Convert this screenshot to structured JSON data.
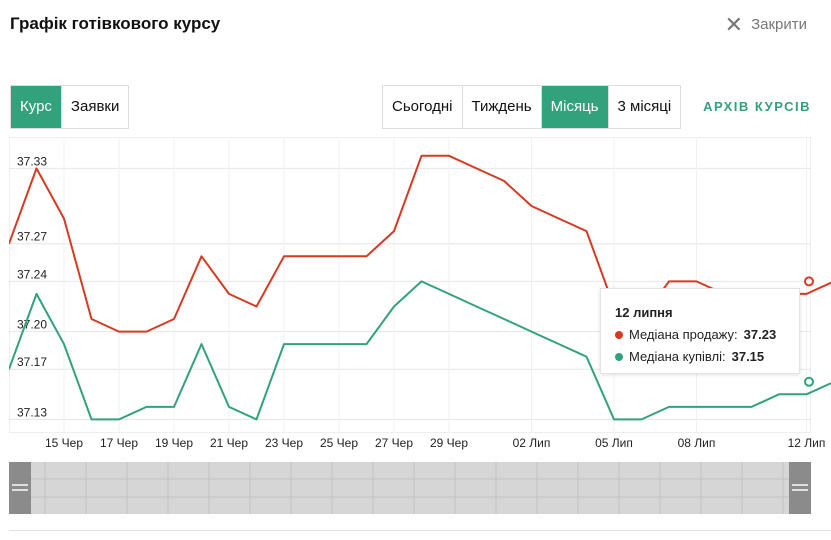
{
  "header": {
    "title": "Графік готівкового курсу",
    "close_label": "Закрити"
  },
  "type_tabs": [
    {
      "label": "Курс",
      "active": true
    },
    {
      "label": "Заявки",
      "active": false
    }
  ],
  "period_tabs": [
    {
      "label": "Сьогодні",
      "active": false
    },
    {
      "label": "Тиждень",
      "active": false
    },
    {
      "label": "Місяць",
      "active": true
    },
    {
      "label": "3 місяці",
      "active": false
    }
  ],
  "archive_link": "АРХІВ КУРСІВ",
  "tooltip": {
    "date": "12 липня",
    "sell_label": "Медіана продажу:",
    "sell_value": "37.23",
    "buy_label": "Медіана купівлі:",
    "buy_value": "37.15"
  },
  "colors": {
    "sell": "#d63a23",
    "buy": "#31a27c",
    "accent": "#31a27c",
    "grid": "#e6e6e6"
  },
  "chart_data": {
    "type": "line",
    "x_tick_labels": [
      "15 Чер",
      "17 Чер",
      "19 Чер",
      "21 Чер",
      "23 Чер",
      "25 Чер",
      "27 Чер",
      "29 Чер",
      "02 Лип",
      "05 Лип",
      "08 Лип",
      "12 Лип"
    ],
    "y_tick_labels": [
      "37.33",
      "37.27",
      "37.24",
      "37.20",
      "37.17",
      "37.13"
    ],
    "x": [
      "13 Чер",
      "14 Чер",
      "15 Чер",
      "16 Чер",
      "17 Чер",
      "18 Чер",
      "19 Чер",
      "20 Чер",
      "21 Чер",
      "22 Чер",
      "23 Чер",
      "24 Чер",
      "25 Чер",
      "26 Чер",
      "27 Чер",
      "28 Чер",
      "29 Чер",
      "30 Чер",
      "01 Лип",
      "02 Лип",
      "03 Лип",
      "04 Лип",
      "05 Лип",
      "06 Лип",
      "07 Лип",
      "08 Лип",
      "09 Лип",
      "10 Лип",
      "11 Лип",
      "12 Лип",
      "13 Лип"
    ],
    "series": [
      {
        "name": "Медіана продажу",
        "values": [
          37.27,
          37.33,
          37.29,
          37.21,
          37.2,
          37.2,
          37.21,
          37.26,
          37.23,
          37.22,
          37.26,
          37.26,
          37.26,
          37.26,
          37.28,
          37.34,
          37.34,
          37.33,
          37.32,
          37.3,
          37.29,
          37.28,
          37.22,
          37.21,
          37.24,
          37.24,
          37.23,
          37.22,
          37.23,
          37.23,
          37.24
        ]
      },
      {
        "name": "Медіана купівлі",
        "values": [
          37.17,
          37.23,
          37.19,
          37.13,
          37.13,
          37.14,
          37.14,
          37.19,
          37.14,
          37.13,
          37.19,
          37.19,
          37.19,
          37.19,
          37.22,
          37.24,
          37.23,
          37.22,
          37.21,
          37.2,
          37.19,
          37.18,
          37.13,
          37.13,
          37.14,
          37.14,
          37.14,
          37.14,
          37.15,
          37.15,
          37.16
        ]
      }
    ],
    "grid": true
  }
}
